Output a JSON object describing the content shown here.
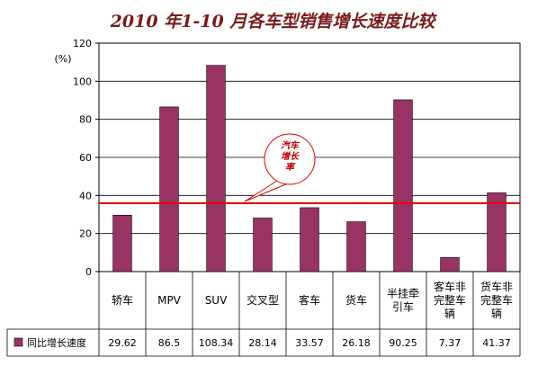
{
  "chart_data": {
    "type": "bar",
    "title": "2010 年1-10 月各车型销售增长速度比较",
    "ylabel": "(%)",
    "ylim": [
      0,
      120
    ],
    "yticks": [
      0,
      20,
      40,
      60,
      80,
      100,
      120
    ],
    "grid": true,
    "categories": [
      [
        "轿车"
      ],
      [
        "MPV"
      ],
      [
        "SUV"
      ],
      [
        "交叉型"
      ],
      [
        "客车"
      ],
      [
        "货车"
      ],
      [
        "半挂牵",
        "引车"
      ],
      [
        "客车非",
        "完整车",
        "辆"
      ],
      [
        "货车非",
        "完整车",
        "辆"
      ]
    ],
    "series": [
      {
        "name": "同比增长速度",
        "values": [
          29.62,
          86.5,
          108.34,
          28.14,
          33.57,
          26.18,
          90.25,
          7.37,
          41.37
        ],
        "labels": [
          "29.62",
          "86.5",
          "108.34",
          "28.14",
          "33.57",
          "26.18",
          "90.25",
          "7.37",
          "41.37"
        ],
        "color": "#993366"
      }
    ],
    "reference_line": {
      "value": 35.9,
      "color": "#e00000",
      "label": [
        "汽车",
        "增长",
        "率"
      ]
    },
    "legend_position": "table-left"
  }
}
